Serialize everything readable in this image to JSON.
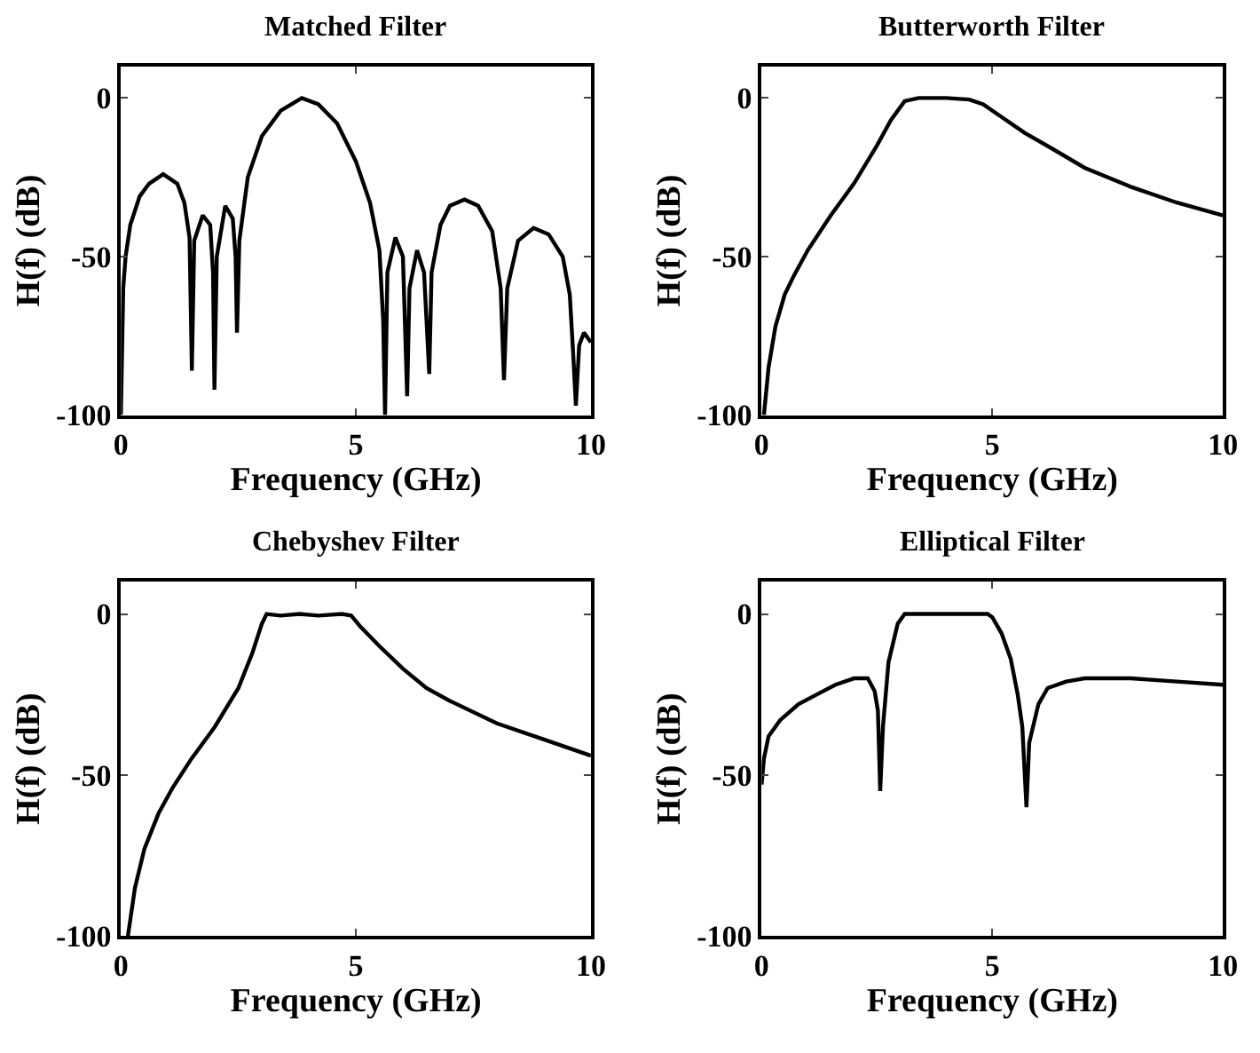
{
  "chart_data": [
    {
      "type": "line",
      "title": "Matched Filter",
      "xlabel": "Frequency (GHz)",
      "ylabel": "H(f) (dB)",
      "xlim": [
        0,
        10
      ],
      "ylim": [
        -100,
        10
      ],
      "xticks": [
        0,
        5,
        10
      ],
      "yticks": [
        -100,
        -50,
        0
      ],
      "series": [
        {
          "color": "#000000",
          "x": [
            0,
            0.05,
            0.1,
            0.2,
            0.4,
            0.6,
            0.9,
            1.2,
            1.35,
            1.46,
            1.51,
            1.56,
            1.74,
            1.9,
            1.96,
            1.99,
            2.04,
            2.22,
            2.38,
            2.44,
            2.47,
            2.52,
            2.7,
            3.0,
            3.4,
            3.85,
            4.2,
            4.6,
            5.0,
            5.3,
            5.5,
            5.58,
            5.62,
            5.67,
            5.84,
            6.0,
            6.09,
            6.14,
            6.3,
            6.45,
            6.56,
            6.61,
            6.8,
            7.0,
            7.31,
            7.6,
            7.9,
            8.08,
            8.15,
            8.22,
            8.45,
            8.78,
            9.1,
            9.4,
            9.55,
            9.62,
            9.68,
            9.75,
            9.85,
            10
          ],
          "values": [
            -100,
            -60,
            -50,
            -40,
            -31,
            -27,
            -24,
            -27,
            -33,
            -44,
            -86,
            -45,
            -37,
            -40,
            -55,
            -92,
            -50,
            -34,
            -38,
            -50,
            -74,
            -45,
            -25,
            -12,
            -4,
            0,
            -2,
            -8,
            -20,
            -33,
            -48,
            -70,
            -100,
            -55,
            -44,
            -50,
            -94,
            -60,
            -48,
            -55,
            -87,
            -55,
            -40,
            -34,
            -32,
            -34,
            -42,
            -60,
            -89,
            -60,
            -45,
            -41,
            -43,
            -50,
            -62,
            -80,
            -97,
            -78,
            -74,
            -77
          ]
        }
      ]
    },
    {
      "type": "line",
      "title": "Butterworth Filter",
      "xlabel": "Frequency (GHz)",
      "ylabel": "H(f) (dB)",
      "xlim": [
        0,
        10
      ],
      "ylim": [
        -100,
        10
      ],
      "xticks": [
        0,
        5,
        10
      ],
      "yticks": [
        -100,
        -50,
        0
      ],
      "series": [
        {
          "color": "#000000",
          "x": [
            0.05,
            0.15,
            0.3,
            0.5,
            0.7,
            1.0,
            1.5,
            2.0,
            2.5,
            2.8,
            3.1,
            3.4,
            4.0,
            4.5,
            4.8,
            5.2,
            5.7,
            6.3,
            7,
            8,
            9,
            10
          ],
          "values": [
            -100,
            -85,
            -72,
            -62,
            -56,
            -48,
            -37,
            -27,
            -15,
            -7,
            -1,
            0,
            0,
            -0.5,
            -2,
            -6,
            -11,
            -16,
            -22,
            -28,
            -33,
            -37
          ]
        }
      ]
    },
    {
      "type": "line",
      "title": "Chebyshev Filter",
      "xlabel": "Frequency (GHz)",
      "ylabel": "H(f) (dB)",
      "xlim": [
        0,
        10
      ],
      "ylim": [
        -100,
        10
      ],
      "xticks": [
        0,
        5,
        10
      ],
      "yticks": [
        -100,
        -50,
        0
      ],
      "series": [
        {
          "color": "#000000",
          "x": [
            0.15,
            0.3,
            0.5,
            0.8,
            1.1,
            1.5,
            2,
            2.5,
            2.8,
            3.0,
            3.1,
            3.4,
            3.8,
            4.2,
            4.7,
            4.9,
            5.1,
            5.5,
            6,
            6.5,
            7,
            8,
            9,
            10
          ],
          "values": [
            -100,
            -85,
            -73,
            -62,
            -54,
            -45,
            -35,
            -23,
            -12,
            -3,
            0,
            -0.5,
            0,
            -0.5,
            0,
            -0.5,
            -4,
            -10,
            -17,
            -23,
            -27,
            -34,
            -39,
            -44
          ]
        }
      ]
    },
    {
      "type": "line",
      "title": "Elliptical Filter",
      "xlabel": "Frequency (GHz)",
      "ylabel": "H(f) (dB)",
      "xlim": [
        0,
        10
      ],
      "ylim": [
        -100,
        10
      ],
      "xticks": [
        0,
        5,
        10
      ],
      "yticks": [
        -100,
        -50,
        0
      ],
      "series": [
        {
          "color": "#000000",
          "x": [
            0,
            0.05,
            0.15,
            0.4,
            0.8,
            1.2,
            1.6,
            2.0,
            2.3,
            2.45,
            2.52,
            2.57,
            2.63,
            2.75,
            2.95,
            3.1,
            3.5,
            4.0,
            4.5,
            4.9,
            5.0,
            5.2,
            5.4,
            5.55,
            5.65,
            5.74,
            5.8,
            6.0,
            6.2,
            6.6,
            7,
            8,
            9,
            10
          ],
          "values": [
            -53,
            -45,
            -38,
            -33,
            -28,
            -25,
            -22,
            -20,
            -20,
            -24,
            -30,
            -55,
            -35,
            -15,
            -3,
            0,
            0,
            0,
            0,
            0,
            -1,
            -6,
            -14,
            -25,
            -35,
            -60,
            -40,
            -28,
            -23,
            -21,
            -20,
            -20,
            -21,
            -22
          ]
        }
      ]
    }
  ]
}
